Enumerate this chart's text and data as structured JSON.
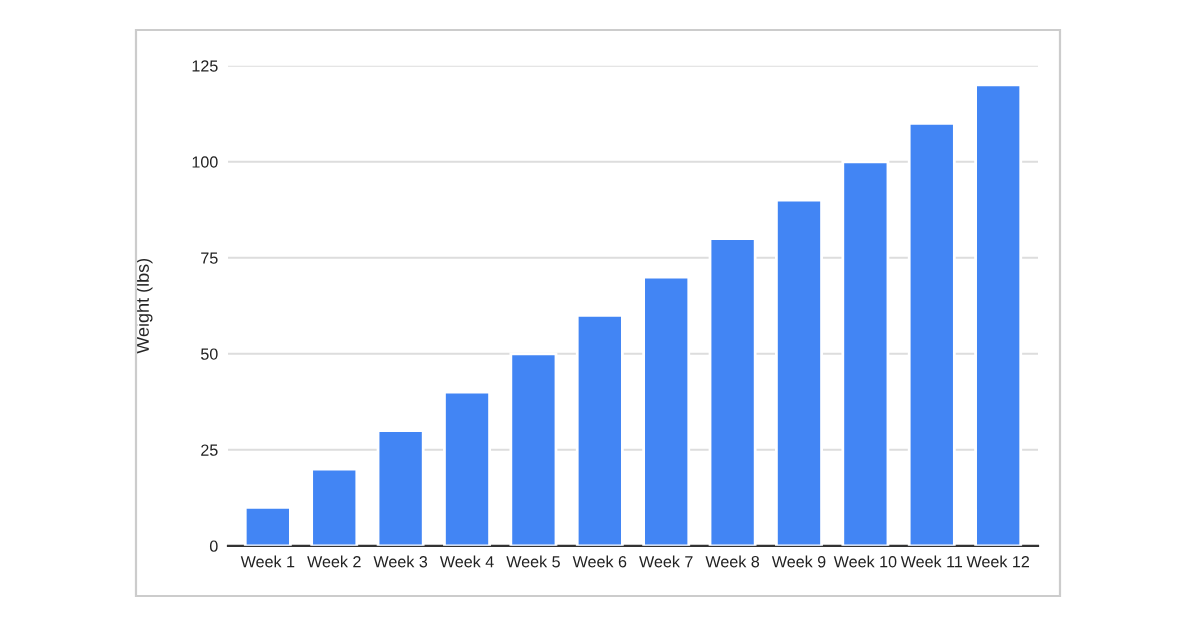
{
  "chart_data": {
    "type": "bar",
    "ylabel": "Weight (lbs)",
    "categories": [
      "Week 1",
      "Week 2",
      "Week 3",
      "Week 4",
      "Week 5",
      "Week 6",
      "Week 7",
      "Week 8",
      "Week 9",
      "Week 10",
      "Week 11",
      "Week 12"
    ],
    "values": [
      10,
      20,
      30,
      40,
      50,
      60,
      70,
      80,
      90,
      100,
      110,
      120
    ],
    "color": "#4285f4",
    "ylim": [
      0,
      125
    ],
    "yticks": [
      0,
      25,
      50,
      75,
      100,
      125
    ],
    "grid": "y"
  }
}
